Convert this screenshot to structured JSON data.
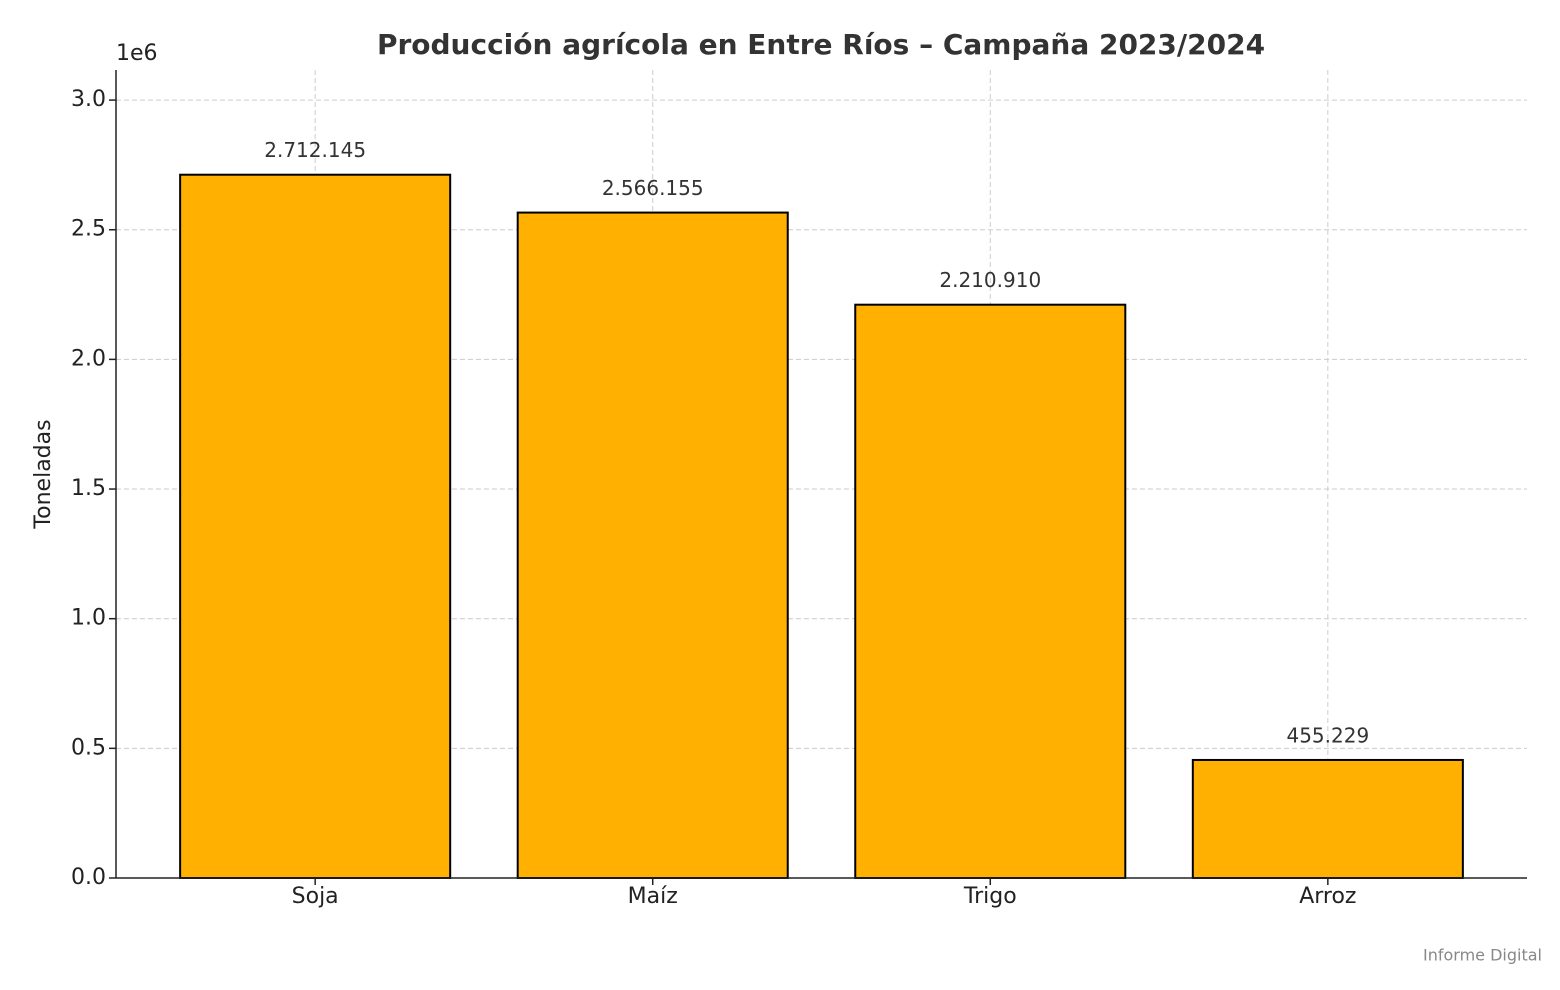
{
  "chart_data": {
    "type": "bar",
    "title": "Producción agrícola en Entre Ríos – Campaña 2023/2024",
    "y_label": "Toneladas",
    "y_offset_label": "1e6",
    "categories": [
      "Soja",
      "Maíz",
      "Trigo",
      "Arroz"
    ],
    "values": [
      2712145,
      2566155,
      2210910,
      455229
    ],
    "value_labels": [
      "2.712.145",
      "2.566.155",
      "2.210.910",
      "455.229"
    ],
    "color": "#ffb000",
    "edge_color": "#000000",
    "ylim": [
      0,
      3116000
    ],
    "yticks": [
      {
        "value": 0,
        "label": "0.0"
      },
      {
        "value": 500000,
        "label": "0.5"
      },
      {
        "value": 1000000,
        "label": "1.0"
      },
      {
        "value": 1500000,
        "label": "1.5"
      },
      {
        "value": 2000000,
        "label": "2.0"
      },
      {
        "value": 2500000,
        "label": "2.5"
      },
      {
        "value": 3000000,
        "label": "3.0"
      }
    ],
    "grid": true,
    "watermark": "Informe Digital"
  }
}
